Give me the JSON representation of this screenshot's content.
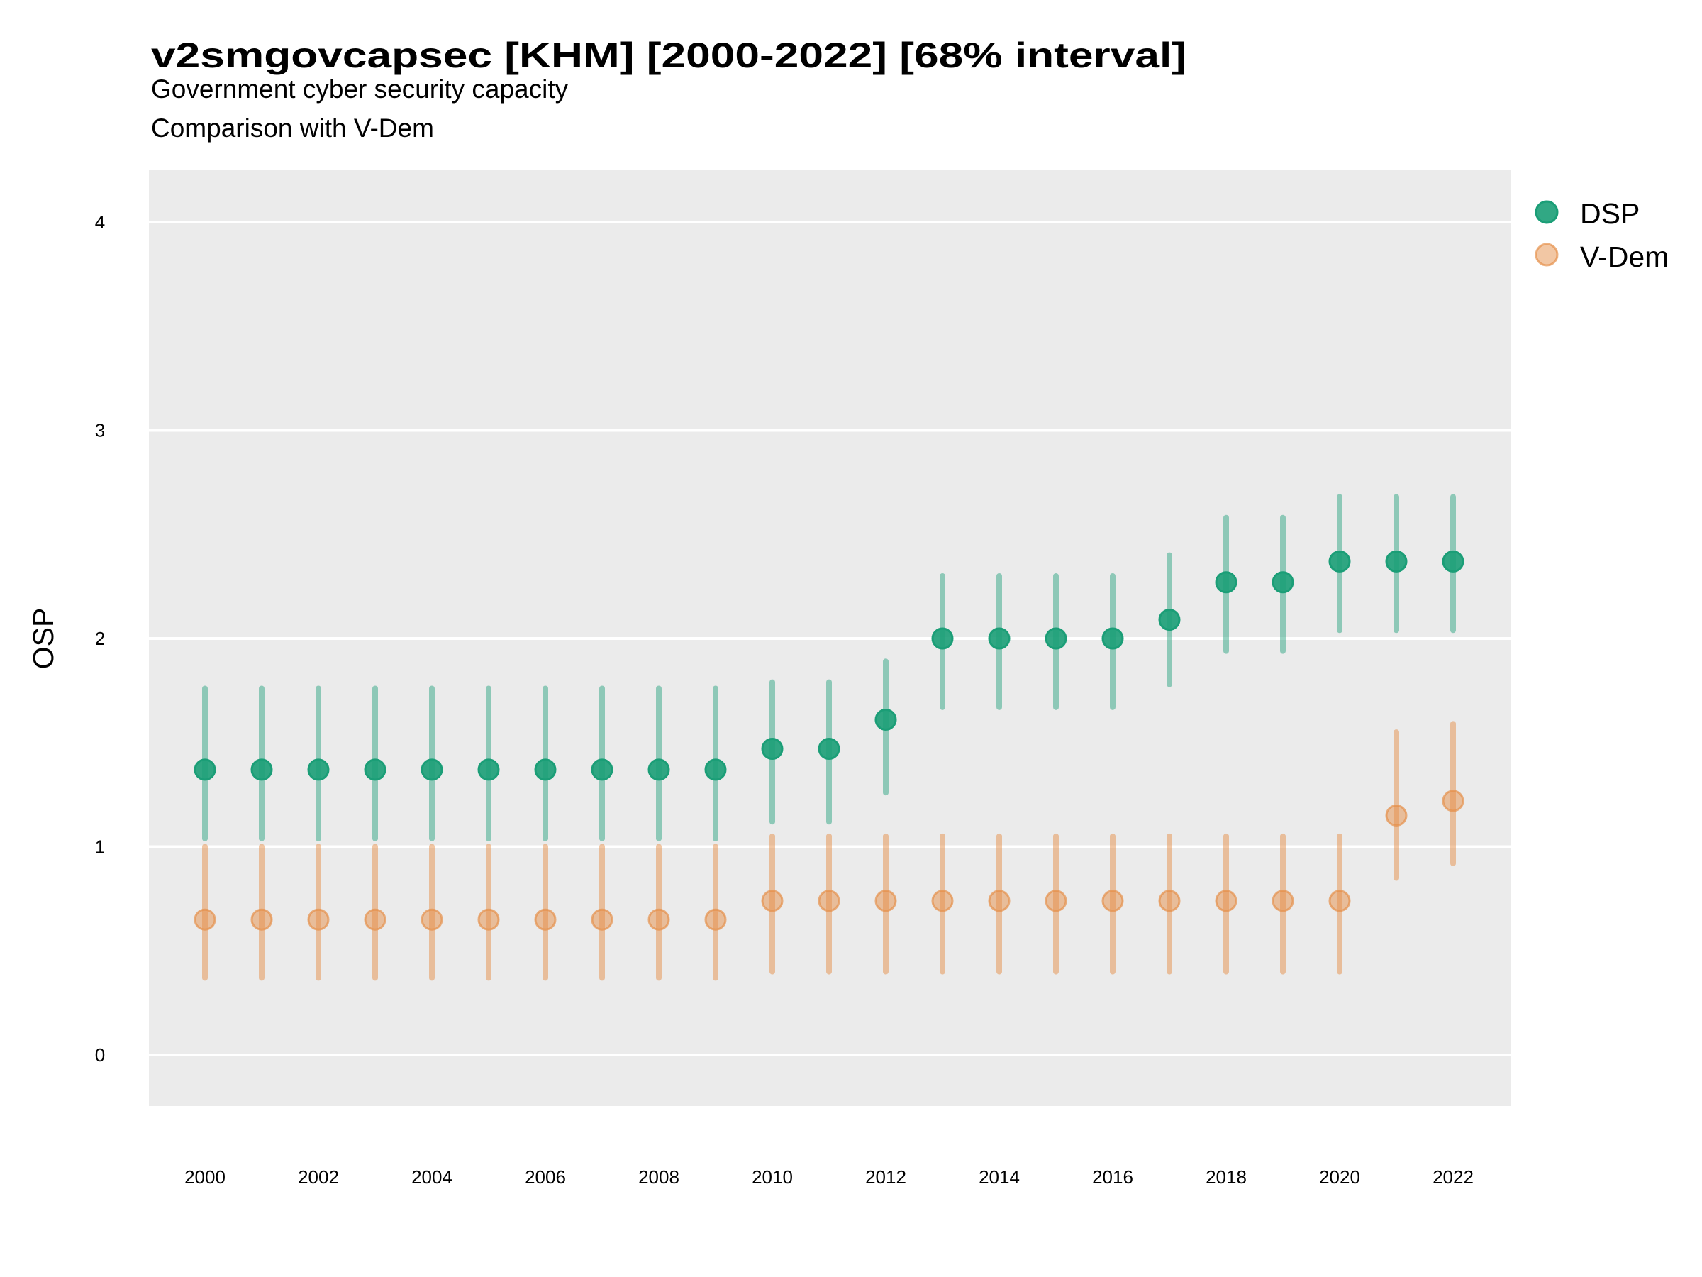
{
  "chart_data": {
    "type": "scatter",
    "title": "v2smgovcapsec [KHM] [2000-2022] [68% interval]",
    "subtitle_lines": [
      "Government cyber security capacity",
      "Comparison with V-Dem"
    ],
    "xlabel": "",
    "ylabel": "OSP",
    "xlim": [
      1999,
      2023
    ],
    "ylim": [
      -0.25,
      4.25
    ],
    "x_ticks": [
      "2000",
      "2002",
      "2004",
      "2006",
      "2008",
      "2010",
      "2012",
      "2014",
      "2016",
      "2018",
      "2020",
      "2022"
    ],
    "y_ticks": [
      "0",
      "1",
      "2",
      "3",
      "4"
    ],
    "grid": true,
    "legend_position": "right",
    "x": [
      2000,
      2001,
      2002,
      2003,
      2004,
      2005,
      2006,
      2007,
      2008,
      2009,
      2010,
      2011,
      2012,
      2013,
      2014,
      2015,
      2016,
      2017,
      2018,
      2019,
      2020,
      2021,
      2022
    ],
    "series": [
      {
        "name": "DSP",
        "color": "#1b9e77",
        "values": [
          1.37,
          1.37,
          1.37,
          1.37,
          1.37,
          1.37,
          1.37,
          1.37,
          1.37,
          1.37,
          1.47,
          1.47,
          1.61,
          2.0,
          2.0,
          2.0,
          2.0,
          2.09,
          2.27,
          2.27,
          2.37,
          2.37,
          2.37
        ],
        "lower": [
          1.04,
          1.04,
          1.04,
          1.04,
          1.04,
          1.04,
          1.04,
          1.04,
          1.04,
          1.04,
          1.12,
          1.12,
          1.26,
          1.67,
          1.67,
          1.67,
          1.67,
          1.78,
          1.94,
          1.94,
          2.04,
          2.04,
          2.04
        ],
        "upper": [
          1.76,
          1.76,
          1.76,
          1.76,
          1.76,
          1.76,
          1.76,
          1.76,
          1.76,
          1.76,
          1.79,
          1.79,
          1.89,
          2.3,
          2.3,
          2.3,
          2.3,
          2.4,
          2.58,
          2.58,
          2.68,
          2.68,
          2.68
        ]
      },
      {
        "name": "V-Dem",
        "color": "#e6904a",
        "values": [
          0.65,
          0.65,
          0.65,
          0.65,
          0.65,
          0.65,
          0.65,
          0.65,
          0.65,
          0.65,
          0.74,
          0.74,
          0.74,
          0.74,
          0.74,
          0.74,
          0.74,
          0.74,
          0.74,
          0.74,
          0.74,
          1.15,
          1.22
        ],
        "lower": [
          0.37,
          0.37,
          0.37,
          0.37,
          0.37,
          0.37,
          0.37,
          0.37,
          0.37,
          0.37,
          0.4,
          0.4,
          0.4,
          0.4,
          0.4,
          0.4,
          0.4,
          0.4,
          0.4,
          0.4,
          0.4,
          0.85,
          0.92
        ],
        "upper": [
          1.0,
          1.0,
          1.0,
          1.0,
          1.0,
          1.0,
          1.0,
          1.0,
          1.0,
          1.0,
          1.05,
          1.05,
          1.05,
          1.05,
          1.05,
          1.05,
          1.05,
          1.05,
          1.05,
          1.05,
          1.05,
          1.55,
          1.59
        ]
      }
    ]
  },
  "colors": {
    "panel_background": "#ebebeb",
    "gridline": "#ffffff",
    "dsp_point": "#1b9e77",
    "vdem_point": "#e6904a"
  }
}
